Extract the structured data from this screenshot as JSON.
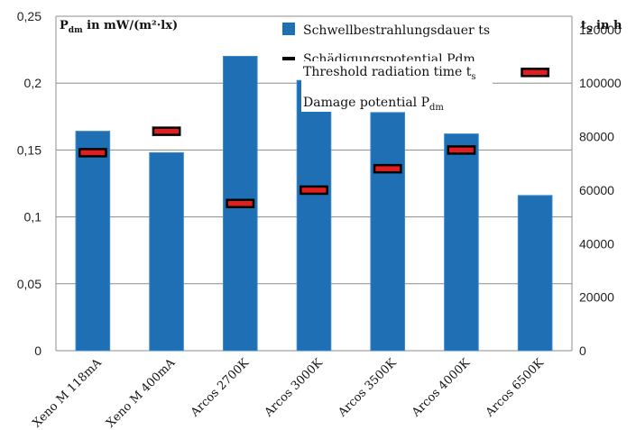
{
  "chart_data": {
    "type": "bar",
    "categories": [
      "Xeno M 118mA",
      "Xeno M 400mA",
      "Arcos 2700K",
      "Arcos 3000K",
      "Arcos 3500K",
      "Arcos 4000K",
      "Arcos 6500K"
    ],
    "series": [
      {
        "name": "Schwellbestrahlungsdauer ts",
        "type": "bar",
        "axis": "right",
        "values": [
          82000,
          74000,
          110000,
          101000,
          89000,
          81000,
          58000
        ],
        "color": "#1f6fb5"
      },
      {
        "name": "Schädigungspotential Pdm",
        "type": "marker",
        "axis": "left",
        "values": [
          0.148,
          0.164,
          0.11,
          0.12,
          0.136,
          0.15,
          0.208
        ],
        "color": "#e02020"
      }
    ],
    "left_axis": {
      "label_main": "P",
      "label_sub": "dm",
      "label_rest": " in mW/(m²·lx)",
      "ylim": [
        0,
        0.25
      ],
      "ticks": [
        "0",
        "0,05",
        "0,1",
        "0,15",
        "0,2",
        "0,25"
      ]
    },
    "right_axis": {
      "label_main": "t",
      "label_sub": "S",
      "label_rest": " in h",
      "ylim": [
        0,
        125000
      ],
      "ticks": [
        "0",
        "20000",
        "40000",
        "60000",
        "80000",
        "100000",
        "120000"
      ]
    },
    "gridlines": true,
    "legend": {
      "position": "top-center",
      "entries": [
        "Schwellbestrahlungsdauer ts",
        "Schädigungspotential Pdm"
      ]
    },
    "overlay_labels": {
      "threshold_main": "Threshold radiation time t",
      "threshold_sub": "s",
      "damage_main": "Damage potential P",
      "damage_sub": "dm"
    }
  }
}
